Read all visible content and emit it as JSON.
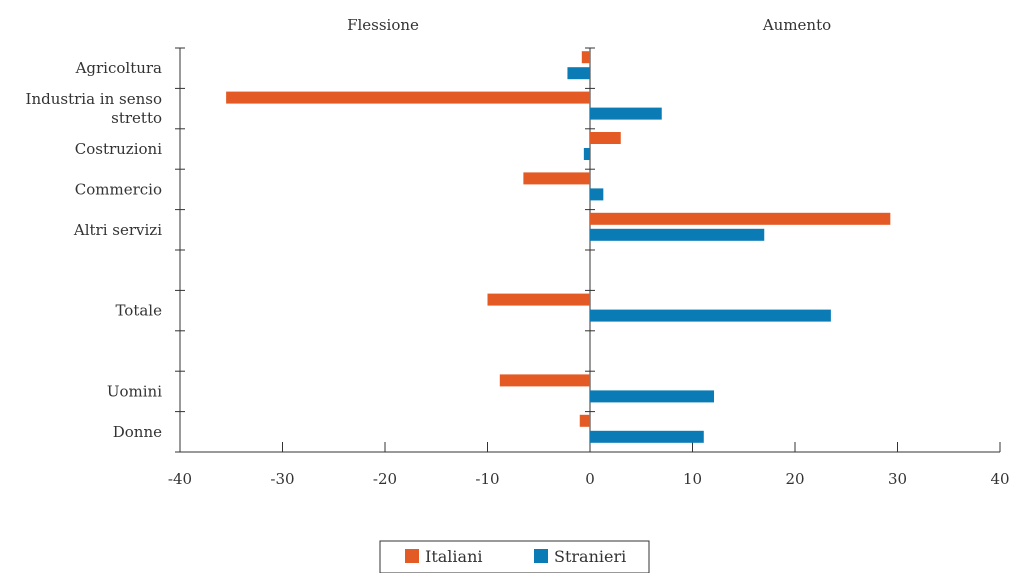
{
  "chart_data": {
    "type": "bar",
    "orientation": "horizontal",
    "headers": {
      "left": "Flessione",
      "right": "Aumento"
    },
    "categories": [
      {
        "label_lines": [
          "Agricoltura"
        ],
        "slot": 0
      },
      {
        "label_lines": [
          "Industria in senso",
          "stretto"
        ],
        "slot": 1
      },
      {
        "label_lines": [
          "Costruzioni"
        ],
        "slot": 2
      },
      {
        "label_lines": [
          "Commercio"
        ],
        "slot": 3
      },
      {
        "label_lines": [
          "Altri servizi"
        ],
        "slot": 4
      },
      {
        "label_lines": [
          "Totale"
        ],
        "slot": 6
      },
      {
        "label_lines": [
          "Uomini"
        ],
        "slot": 8
      },
      {
        "label_lines": [
          "Donne"
        ],
        "slot": 9
      }
    ],
    "series": [
      {
        "name": "Italiani",
        "color": "#e35a24",
        "values": [
          -0.8,
          -35.5,
          3.0,
          -6.5,
          29.3,
          -10.0,
          -8.8,
          -1.0
        ]
      },
      {
        "name": "Stranieri",
        "color": "#0a7bb5",
        "values": [
          -2.2,
          7.0,
          -0.6,
          1.3,
          17.0,
          23.5,
          12.1,
          11.1
        ]
      }
    ],
    "xlim": [
      -40,
      40
    ],
    "xticks": [
      "-40",
      "-30",
      "-20",
      "-10",
      "0",
      "10",
      "20",
      "30",
      "40"
    ],
    "slot_count": 10,
    "legend_position": "bottom-center",
    "grid": false
  }
}
